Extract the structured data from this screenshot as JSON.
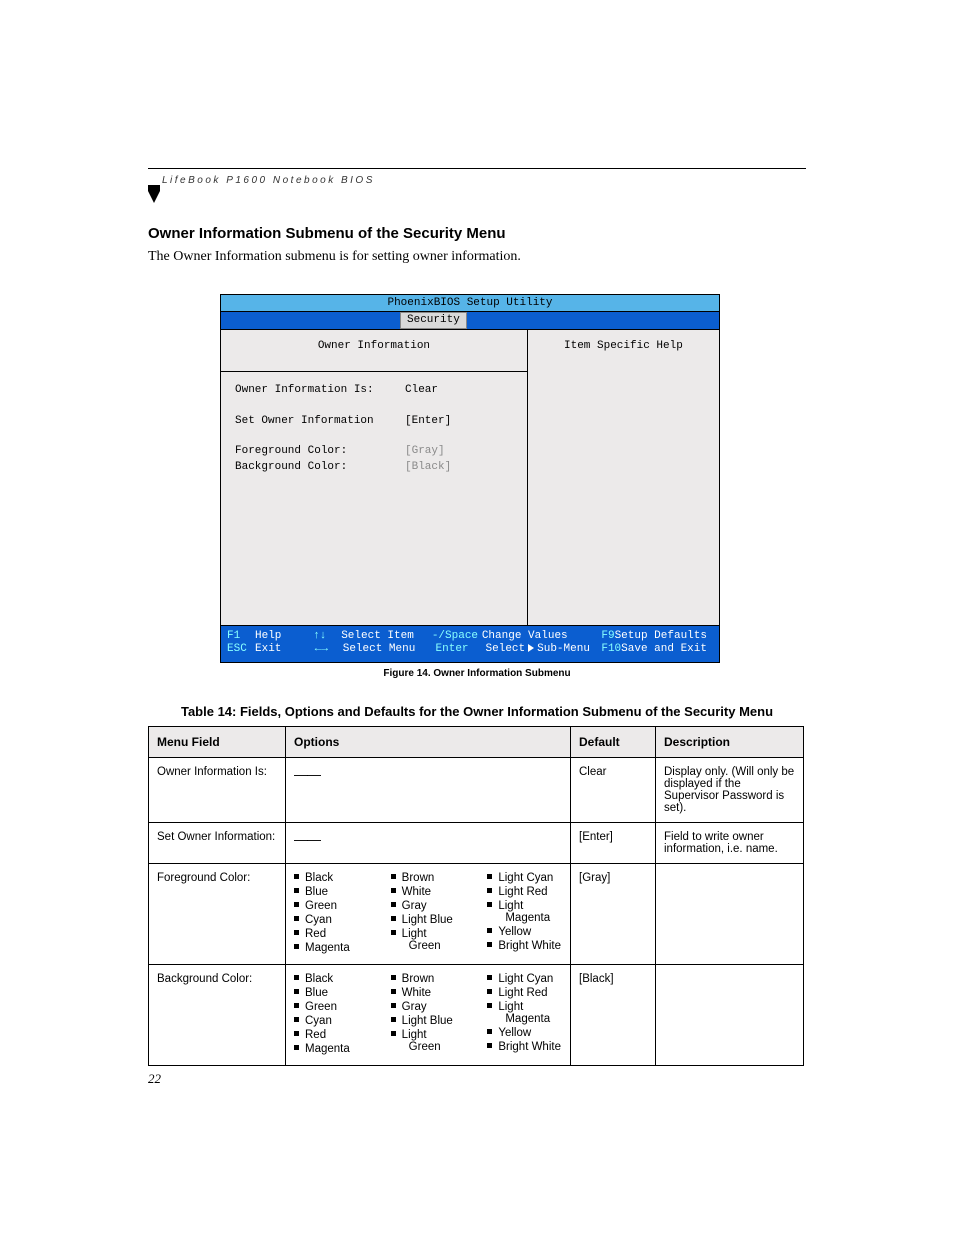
{
  "running_head": "LifeBook P1600 Notebook BIOS",
  "heading": "Owner Information Submenu of the Security Menu",
  "intro": "The Owner Information submenu is for setting owner information.",
  "bios": {
    "title": "PhoenixBIOS Setup Utility",
    "tab": "Security",
    "left_title": "Owner Information",
    "right_title": "Item Specific Help",
    "rows": [
      {
        "label": "Owner Information Is:",
        "value": "Clear",
        "muted": false
      },
      {
        "label": "Set Owner Information",
        "value": "[Enter]",
        "muted": false
      },
      {
        "label": "Foreground Color:",
        "value": "[Gray]",
        "muted": true
      },
      {
        "label": "Background Color:",
        "value": "[Black]",
        "muted": true
      }
    ],
    "footer": {
      "f1": "F1",
      "help": "Help",
      "updown": "↑↓",
      "selitem": "Select Item",
      "minus": "-/Space",
      "chval": "Change Values",
      "f9": "F9",
      "setup": "Setup Defaults",
      "esc": "ESC",
      "exit": "Exit",
      "leftright": "←→",
      "selmenu": "Select Menu",
      "enter": "Enter",
      "selsub": "Select   Sub-Menu",
      "f10": "F10",
      "save": "Save and Exit"
    }
  },
  "figcap": "Figure 14.   Owner Information Submenu",
  "tblcap": "Table 14: Fields, Options and Defaults for the Owner Information Submenu of the Security Menu",
  "table": {
    "headers": {
      "menu": "Menu Field",
      "opt": "Options",
      "def": "Default",
      "desc": "Description"
    },
    "rows": [
      {
        "menu": "Owner Information Is:",
        "opt_dash": true,
        "def": "Clear",
        "desc": "Display only. (Will only be displayed if the Supervisor Password is set)."
      },
      {
        "menu": "Set Owner Information:",
        "opt_dash": true,
        "def": "[Enter]",
        "desc": "Field to write owner information, i.e. name."
      },
      {
        "menu": "Foreground Color:",
        "colors": true,
        "def": "[Gray]",
        "desc": ""
      },
      {
        "menu": "Background Color:",
        "colors": true,
        "def": "[Black]",
        "desc": ""
      }
    ],
    "colors": {
      "c1": [
        "Black",
        "Blue",
        "Green",
        "Cyan",
        "Red",
        "Magenta"
      ],
      "c2": [
        "Brown",
        "White",
        "Gray",
        "Light Blue"
      ],
      "c2_split": {
        "top": "Light",
        "bottom": "Green"
      },
      "c3_top": [
        "Light Cyan",
        "Light Red"
      ],
      "c3_split": {
        "top": "Light",
        "bottom": "Magenta"
      },
      "c3_bot": [
        "Yellow",
        "Bright White"
      ]
    }
  },
  "pagenum": "22",
  "colors": {
    "bios_title_bg": "#56b4e8",
    "bios_tabs_bg": "#0b5ed0",
    "bios_body_bg": "#eceaea",
    "table_header_bg": "#eceaea"
  }
}
